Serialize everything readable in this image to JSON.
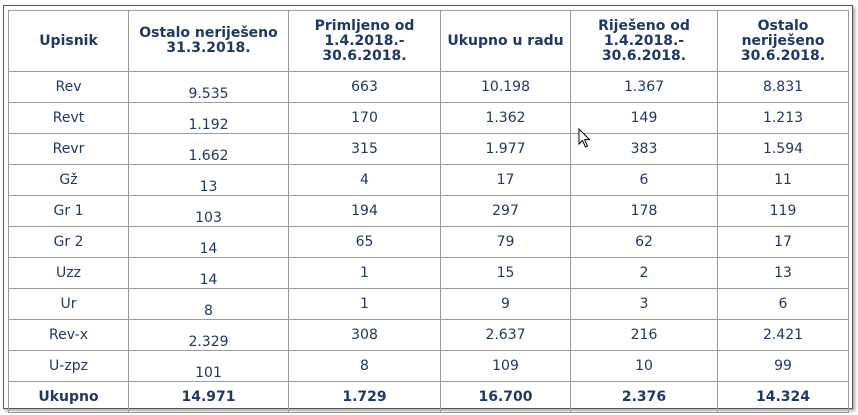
{
  "table": {
    "headers": [
      "Upisnik",
      "Ostalo neriješeno 31.3.2018.",
      "Primljeno od 1.4.2018.- 30.6.2018.",
      "Ukupno u radu",
      "Riješeno od 1.4.2018.- 30.6.2018.",
      "Ostalo neriješeno 30.6.2018."
    ],
    "rows": [
      [
        "Rev",
        "9.535",
        "663",
        "10.198",
        "1.367",
        "8.831"
      ],
      [
        "Revt",
        "1.192",
        "170",
        "1.362",
        "149",
        "1.213"
      ],
      [
        "Revr",
        "1.662",
        "315",
        "1.977",
        "383",
        "1.594"
      ],
      [
        "Gž",
        "13",
        "4",
        "17",
        "6",
        "11"
      ],
      [
        "Gr 1",
        "103",
        "194",
        "297",
        "178",
        "119"
      ],
      [
        "Gr 2",
        "14",
        "65",
        "79",
        "62",
        "17"
      ],
      [
        "Uzz",
        "14",
        "1",
        "15",
        "2",
        "13"
      ],
      [
        "Ur",
        "8",
        "1",
        "9",
        "3",
        "6"
      ],
      [
        "Rev-x",
        "2.329",
        "308",
        "2.637",
        "216",
        "2.421"
      ],
      [
        "U-zpz",
        "101",
        "8",
        "109",
        "10",
        "99"
      ]
    ],
    "total": [
      "Ukupno",
      "14.971",
      "1.729",
      "16.700",
      "2.376",
      "14.324"
    ]
  },
  "colors": {
    "text": "#1f3864",
    "border": "#9a9a9a"
  },
  "cursor_icon": "mouse-pointer-icon"
}
